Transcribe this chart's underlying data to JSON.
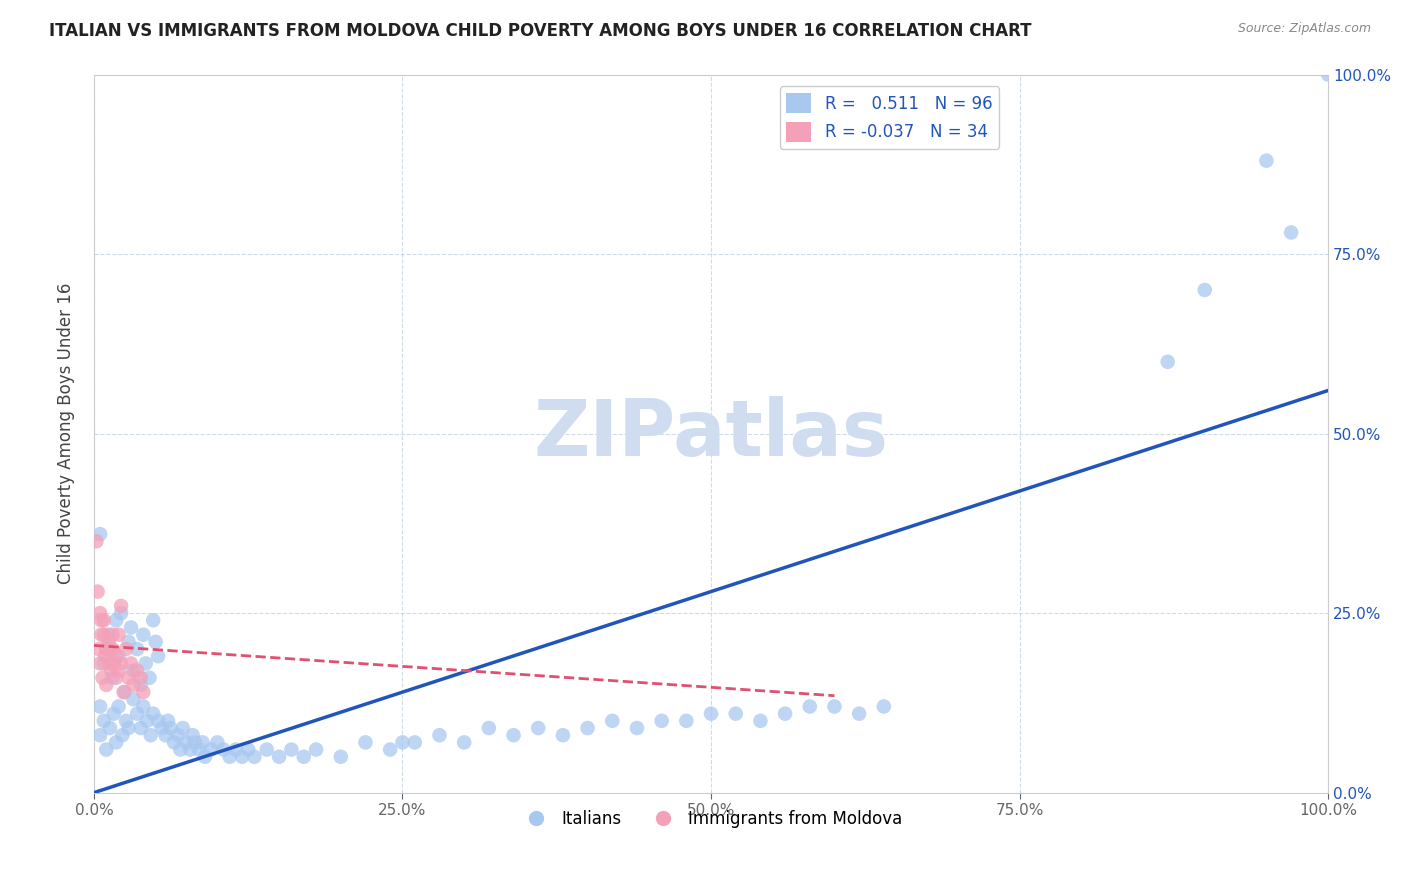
{
  "title": "ITALIAN VS IMMIGRANTS FROM MOLDOVA CHILD POVERTY AMONG BOYS UNDER 16 CORRELATION CHART",
  "source": "Source: ZipAtlas.com",
  "ylabel": "Child Poverty Among Boys Under 16",
  "blue_R": 0.511,
  "blue_N": 96,
  "pink_R": -0.037,
  "pink_N": 34,
  "blue_color": "#A8C8F0",
  "pink_color": "#F4A0B8",
  "blue_line_color": "#2255BB",
  "pink_line_color": "#E05070",
  "blue_label": "Italians",
  "pink_label": "Immigrants from Moldova",
  "watermark_text": "ZIPatlas",
  "watermark_color": "#D0DCF0",
  "xlim": [
    0,
    1
  ],
  "ylim": [
    0,
    1
  ],
  "ytick_labels": [
    "0.0%",
    "25.0%",
    "50.0%",
    "75.0%",
    "100.0%"
  ],
  "ytick_values": [
    0,
    0.25,
    0.5,
    0.75,
    1.0
  ],
  "xtick_labels": [
    "0.0%",
    "25.0%",
    "50.0%",
    "75.0%",
    "100.0%"
  ],
  "xtick_values": [
    0,
    0.25,
    0.5,
    0.75,
    1.0
  ],
  "title_fontsize": 12,
  "axis_fontsize": 11,
  "legend_fontsize": 12,
  "blue_trend_x": [
    0.0,
    1.0
  ],
  "blue_trend_y": [
    0.0,
    0.56
  ],
  "pink_trend_x": [
    0.0,
    0.6
  ],
  "pink_trend_y": [
    0.205,
    0.135
  ],
  "blue_scatter_x": [
    0.005,
    0.008,
    0.01,
    0.012,
    0.015,
    0.018,
    0.02,
    0.022,
    0.025,
    0.028,
    0.03,
    0.032,
    0.035,
    0.038,
    0.04,
    0.042,
    0.045,
    0.048,
    0.05,
    0.052,
    0.005,
    0.008,
    0.01,
    0.013,
    0.016,
    0.018,
    0.02,
    0.023,
    0.026,
    0.028,
    0.032,
    0.035,
    0.038,
    0.04,
    0.043,
    0.046,
    0.048,
    0.052,
    0.055,
    0.058,
    0.06,
    0.062,
    0.065,
    0.068,
    0.07,
    0.072,
    0.075,
    0.078,
    0.08,
    0.082,
    0.085,
    0.088,
    0.09,
    0.095,
    0.1,
    0.105,
    0.11,
    0.115,
    0.12,
    0.125,
    0.13,
    0.14,
    0.15,
    0.16,
    0.17,
    0.18,
    0.2,
    0.22,
    0.24,
    0.25,
    0.26,
    0.28,
    0.3,
    0.32,
    0.34,
    0.36,
    0.38,
    0.4,
    0.42,
    0.44,
    0.46,
    0.48,
    0.5,
    0.52,
    0.54,
    0.56,
    0.58,
    0.6,
    0.62,
    0.64,
    0.87,
    0.9,
    0.95,
    0.97,
    1.0,
    0.005
  ],
  "blue_scatter_y": [
    0.12,
    0.18,
    0.2,
    0.22,
    0.16,
    0.24,
    0.19,
    0.25,
    0.14,
    0.21,
    0.23,
    0.17,
    0.2,
    0.15,
    0.22,
    0.18,
    0.16,
    0.24,
    0.21,
    0.19,
    0.08,
    0.1,
    0.06,
    0.09,
    0.11,
    0.07,
    0.12,
    0.08,
    0.1,
    0.09,
    0.13,
    0.11,
    0.09,
    0.12,
    0.1,
    0.08,
    0.11,
    0.1,
    0.09,
    0.08,
    0.1,
    0.09,
    0.07,
    0.08,
    0.06,
    0.09,
    0.07,
    0.06,
    0.08,
    0.07,
    0.06,
    0.07,
    0.05,
    0.06,
    0.07,
    0.06,
    0.05,
    0.06,
    0.05,
    0.06,
    0.05,
    0.06,
    0.05,
    0.06,
    0.05,
    0.06,
    0.05,
    0.07,
    0.06,
    0.07,
    0.07,
    0.08,
    0.07,
    0.09,
    0.08,
    0.09,
    0.08,
    0.09,
    0.1,
    0.09,
    0.1,
    0.1,
    0.11,
    0.11,
    0.1,
    0.11,
    0.12,
    0.12,
    0.11,
    0.12,
    0.6,
    0.7,
    0.88,
    0.78,
    1.0,
    0.36
  ],
  "pink_scatter_x": [
    0.002,
    0.004,
    0.005,
    0.006,
    0.007,
    0.008,
    0.009,
    0.01,
    0.012,
    0.014,
    0.015,
    0.016,
    0.018,
    0.02,
    0.022,
    0.024,
    0.026,
    0.028,
    0.03,
    0.032,
    0.035,
    0.038,
    0.04,
    0.005,
    0.008,
    0.01,
    0.012,
    0.015,
    0.018,
    0.02,
    0.003,
    0.006,
    0.012,
    0.022
  ],
  "pink_scatter_y": [
    0.35,
    0.2,
    0.18,
    0.22,
    0.16,
    0.24,
    0.19,
    0.15,
    0.21,
    0.17,
    0.2,
    0.18,
    0.16,
    0.22,
    0.18,
    0.14,
    0.2,
    0.16,
    0.18,
    0.15,
    0.17,
    0.16,
    0.14,
    0.25,
    0.22,
    0.2,
    0.18,
    0.22,
    0.19,
    0.17,
    0.28,
    0.24,
    0.2,
    0.26
  ]
}
